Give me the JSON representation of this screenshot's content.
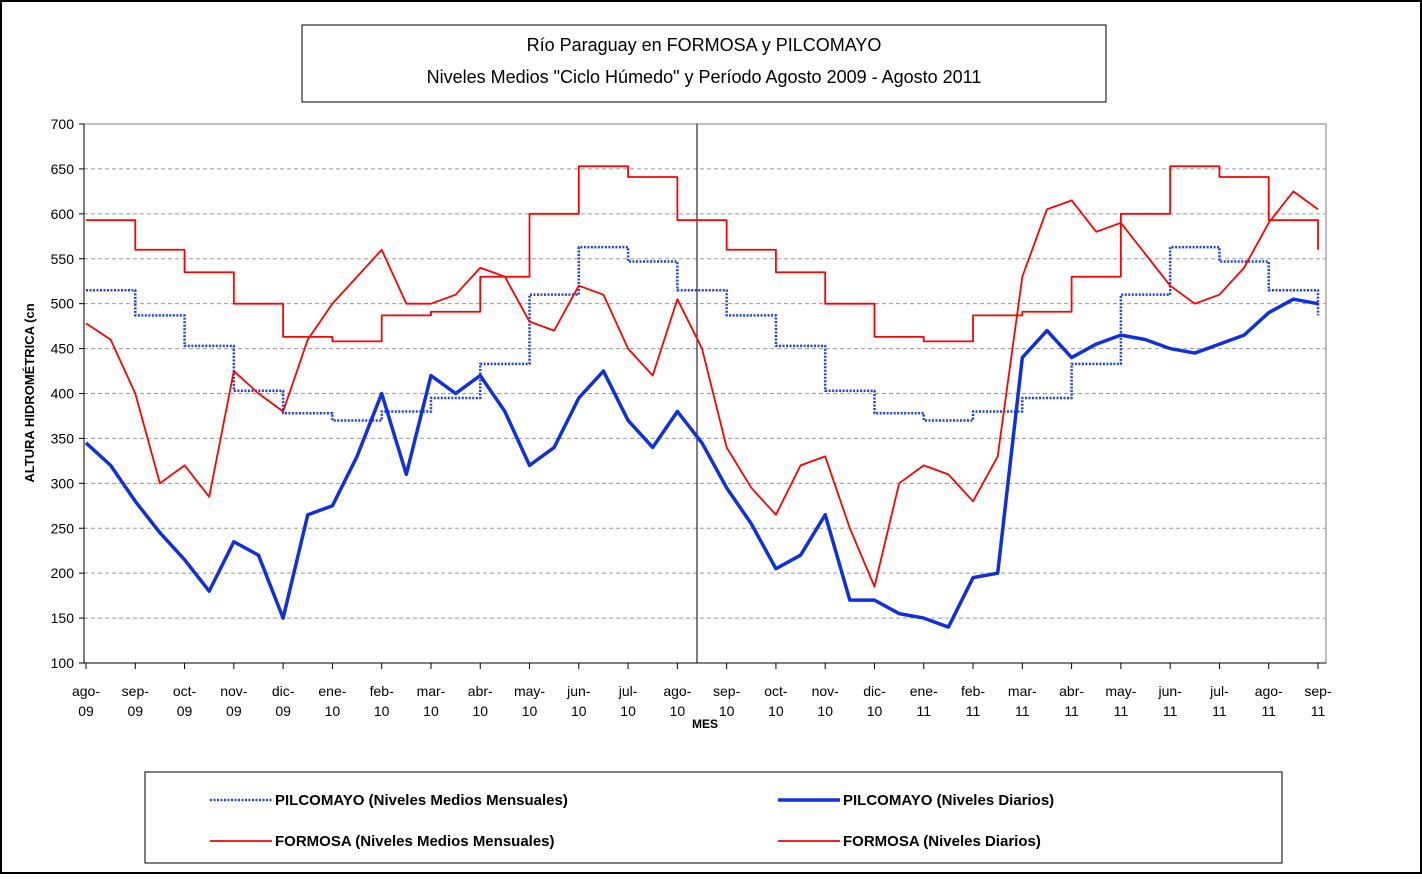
{
  "chart_data": {
    "type": "line",
    "title": "Río Paraguay en FORMOSA y PILCOMAYO",
    "subtitle": "Niveles Medios \"Ciclo Húmedo\" y Período Agosto 2009 - Agosto 2011",
    "x_label": "MES",
    "y_label": "ALTURA HIDROMÉTRICA (cn",
    "categories": [
      "ago-09",
      null,
      "sep-09",
      null,
      "oct-09",
      null,
      "nov-09",
      null,
      "dic-09",
      null,
      "ene-10",
      null,
      "feb-10",
      null,
      "mar-10",
      null,
      "abr-10",
      null,
      "may-10",
      null,
      "jun-10",
      null,
      "jul-10",
      null,
      "ago-10",
      null,
      "sep-10",
      null,
      "oct-10",
      null,
      "nov-10",
      null,
      "dic-10",
      null,
      "ene-11",
      null,
      "feb-11",
      null,
      "mar-11",
      null,
      "abr-11",
      null,
      "may-11",
      null,
      "jun-11",
      null,
      "jul-11",
      null,
      "ago-11",
      null,
      "sep-11"
    ],
    "ylim": [
      100,
      700
    ],
    "yticks": [
      100,
      150,
      200,
      250,
      300,
      350,
      400,
      450,
      500,
      550,
      600,
      650,
      700
    ],
    "grid": true,
    "legend": "bottom",
    "series": [
      {
        "name": "PILCOMAYO (Niveles Medios Mensuales)",
        "color": "#2040e0",
        "style": "dotted",
        "step": true,
        "values": [
          515,
          515,
          487,
          487,
          453,
          453,
          403,
          403,
          378,
          378,
          370,
          370,
          380,
          380,
          395,
          395,
          433,
          433,
          510,
          510,
          563,
          563,
          547,
          547,
          515,
          515,
          487,
          487,
          453,
          453,
          403,
          403,
          378,
          378,
          370,
          370,
          380,
          380,
          395,
          395,
          433,
          433,
          510,
          510,
          563,
          563,
          547,
          547,
          515,
          515,
          487
        ]
      },
      {
        "name": "PILCOMAYO (Niveles Diarios)",
        "color": "#1030e0",
        "style": "thick",
        "step": false,
        "values": [
          345,
          320,
          280,
          245,
          215,
          180,
          235,
          220,
          150,
          265,
          275,
          330,
          400,
          310,
          420,
          400,
          420,
          380,
          320,
          340,
          395,
          425,
          370,
          340,
          380,
          345,
          295,
          255,
          205,
          220,
          265,
          170,
          170,
          155,
          150,
          140,
          195,
          200,
          440,
          470,
          440,
          455,
          465,
          460,
          450,
          445,
          455,
          465,
          490,
          505,
          500
        ]
      },
      {
        "name": "FORMOSA (Niveles Medios Mensuales)",
        "color": "#ff0000",
        "style": "solid",
        "step": true,
        "values": [
          593,
          593,
          560,
          560,
          535,
          535,
          500,
          500,
          463,
          463,
          458,
          458,
          487,
          487,
          491,
          491,
          530,
          530,
          600,
          600,
          653,
          653,
          641,
          641,
          593,
          593,
          560,
          560,
          535,
          535,
          500,
          500,
          463,
          463,
          458,
          458,
          487,
          487,
          491,
          491,
          530,
          530,
          600,
          600,
          653,
          653,
          641,
          641,
          593,
          593,
          560
        ]
      },
      {
        "name": "FORMOSA (Niveles Diarios)",
        "color": "#ff0000",
        "style": "solid",
        "step": false,
        "values": [
          478,
          460,
          400,
          300,
          320,
          285,
          425,
          400,
          380,
          460,
          500,
          530,
          560,
          500,
          500,
          510,
          540,
          530,
          480,
          470,
          520,
          510,
          450,
          420,
          505,
          450,
          340,
          295,
          265,
          320,
          330,
          250,
          185,
          300,
          320,
          310,
          280,
          330,
          530,
          605,
          615,
          580,
          590,
          555,
          520,
          500,
          510,
          540,
          590,
          625,
          605
        ]
      }
    ]
  }
}
